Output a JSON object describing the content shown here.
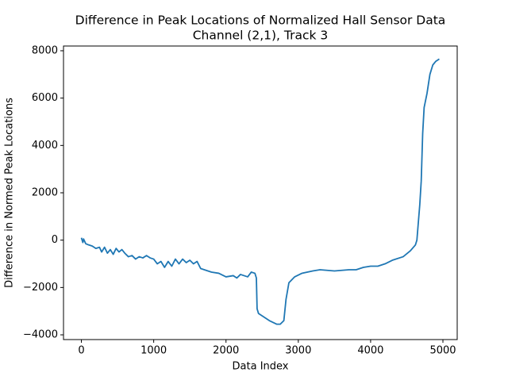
{
  "chart_data": {
    "type": "line",
    "title": "Difference in Peak Locations of Normalized Hall Sensor Data",
    "subtitle": "Channel (2,1), Track 3",
    "x_label": "Data Index",
    "y_label": "Difference in Normed Peak Locations",
    "x": [
      0,
      20,
      30,
      60,
      100,
      150,
      200,
      250,
      280,
      320,
      360,
      400,
      440,
      480,
      520,
      560,
      600,
      650,
      700,
      750,
      800,
      850,
      900,
      950,
      1000,
      1050,
      1100,
      1150,
      1200,
      1250,
      1300,
      1350,
      1400,
      1450,
      1500,
      1550,
      1600,
      1650,
      1700,
      1800,
      1900,
      2000,
      2100,
      2150,
      2200,
      2300,
      2350,
      2400,
      2420,
      2430,
      2450,
      2500,
      2600,
      2700,
      2750,
      2800,
      2830,
      2870,
      2950,
      3050,
      3200,
      3300,
      3500,
      3700,
      3800,
      3900,
      4000,
      4100,
      4200,
      4300,
      4450,
      4550,
      4620,
      4640,
      4680,
      4700,
      4720,
      4740,
      4780,
      4820,
      4860,
      4900,
      4950
    ],
    "series": [
      {
        "name": "difference",
        "color": "#1f77b4",
        "values": [
          100,
          -100,
          50,
          -150,
          -200,
          -250,
          -350,
          -300,
          -500,
          -300,
          -550,
          -400,
          -600,
          -350,
          -500,
          -400,
          -550,
          -700,
          -650,
          -800,
          -700,
          -750,
          -650,
          -750,
          -800,
          -1000,
          -900,
          -1150,
          -900,
          -1100,
          -800,
          -1000,
          -800,
          -950,
          -850,
          -1000,
          -900,
          -1200,
          -1250,
          -1350,
          -1400,
          -1550,
          -1500,
          -1600,
          -1450,
          -1550,
          -1350,
          -1400,
          -1600,
          -2900,
          -3100,
          -3200,
          -3400,
          -3550,
          -3550,
          -3400,
          -2500,
          -1800,
          -1550,
          -1400,
          -1300,
          -1250,
          -1300,
          -1250,
          -1250,
          -1150,
          -1100,
          -1100,
          -1000,
          -850,
          -700,
          -450,
          -200,
          0,
          1500,
          2500,
          4500,
          5600,
          6200,
          7000,
          7400,
          7550,
          7650
        ]
      }
    ],
    "xlim": [
      -247.5,
      5197.5
    ],
    "ylim": [
      -4200,
      8200
    ],
    "xticks": [
      0,
      1000,
      2000,
      3000,
      4000,
      5000
    ],
    "yticks": [
      {
        "value": -4000,
        "label": "−4000"
      },
      {
        "value": -2000,
        "label": "−2000"
      },
      0,
      2000,
      4000,
      6000,
      8000
    ]
  }
}
